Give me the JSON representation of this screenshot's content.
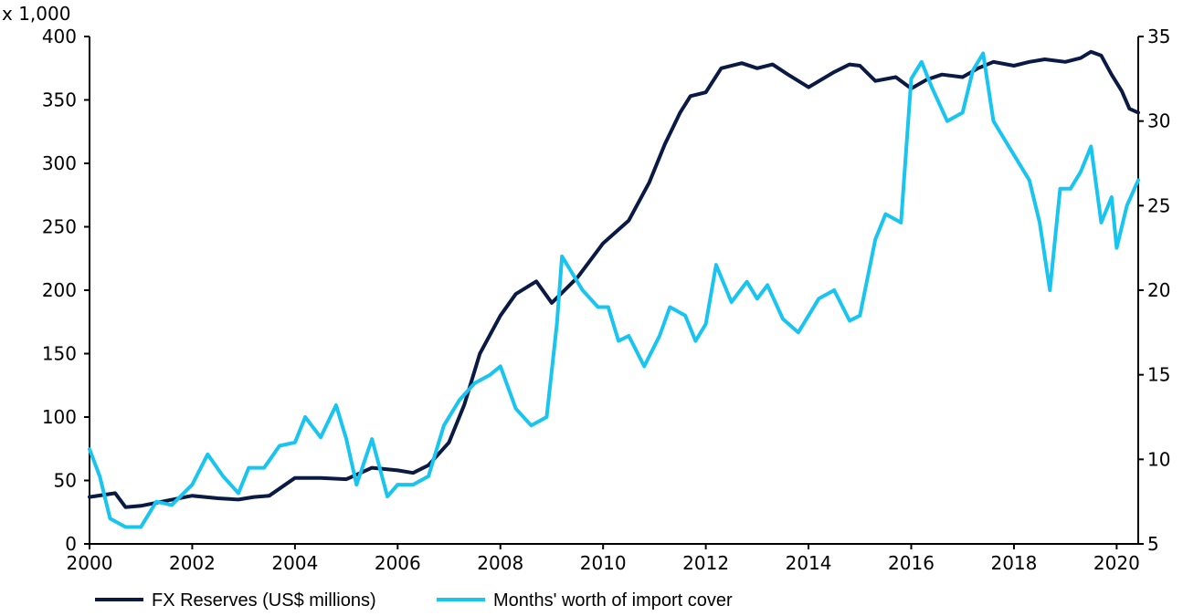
{
  "chart_data": {
    "type": "line",
    "y_unit_label": "x 1,000",
    "xlim": [
      2000,
      2020.42
    ],
    "ylim_left": [
      0,
      400
    ],
    "ylim_right": [
      5,
      35
    ],
    "x_ticks": [
      "2000",
      "2002",
      "2004",
      "2006",
      "2008",
      "2010",
      "2012",
      "2014",
      "2016",
      "2018",
      "2020"
    ],
    "left_ticks": [
      "0",
      "50",
      "100",
      "150",
      "200",
      "250",
      "300",
      "350",
      "400"
    ],
    "right_ticks": [
      "5",
      "10",
      "15",
      "20",
      "25",
      "30",
      "35"
    ],
    "grid": false,
    "legend_position": "bottom",
    "colors": {
      "reserves": "#0a1a44",
      "cover": "#18c4f0"
    },
    "series": [
      {
        "name": "FX Reserves (US$ millions)",
        "axis": "left",
        "points": [
          [
            2000,
            37
          ],
          [
            2000.5,
            40
          ],
          [
            2000.7,
            29
          ],
          [
            2001,
            30
          ],
          [
            2001.5,
            34
          ],
          [
            2002,
            38
          ],
          [
            2002.5,
            36
          ],
          [
            2002.9,
            35
          ],
          [
            2003.2,
            37
          ],
          [
            2003.5,
            38
          ],
          [
            2004,
            52
          ],
          [
            2004.5,
            52
          ],
          [
            2005,
            51
          ],
          [
            2005.5,
            60
          ],
          [
            2006,
            58
          ],
          [
            2006.3,
            56
          ],
          [
            2006.6,
            62
          ],
          [
            2007,
            80
          ],
          [
            2007.3,
            110
          ],
          [
            2007.6,
            150
          ],
          [
            2008,
            180
          ],
          [
            2008.3,
            197
          ],
          [
            2008.7,
            207
          ],
          [
            2009,
            190
          ],
          [
            2009.5,
            210
          ],
          [
            2010,
            237
          ],
          [
            2010.5,
            255
          ],
          [
            2010.9,
            285
          ],
          [
            2011.2,
            315
          ],
          [
            2011.5,
            340
          ],
          [
            2011.7,
            353
          ],
          [
            2012,
            356
          ],
          [
            2012.3,
            375
          ],
          [
            2012.7,
            379
          ],
          [
            2013,
            375
          ],
          [
            2013.3,
            378
          ],
          [
            2013.6,
            370
          ],
          [
            2014,
            360
          ],
          [
            2014.5,
            372
          ],
          [
            2014.8,
            378
          ],
          [
            2015,
            377
          ],
          [
            2015.3,
            365
          ],
          [
            2015.7,
            368
          ],
          [
            2016,
            359
          ],
          [
            2016.3,
            366
          ],
          [
            2016.6,
            370
          ],
          [
            2017,
            368
          ],
          [
            2017.3,
            375
          ],
          [
            2017.6,
            380
          ],
          [
            2018,
            377
          ],
          [
            2018.3,
            380
          ],
          [
            2018.6,
            382
          ],
          [
            2019,
            380
          ],
          [
            2019.3,
            383
          ],
          [
            2019.5,
            388
          ],
          [
            2019.7,
            385
          ],
          [
            2019.9,
            370
          ],
          [
            2020.1,
            357
          ],
          [
            2020.25,
            343
          ],
          [
            2020.42,
            340
          ]
        ]
      },
      {
        "name": "Months' worth of import cover",
        "axis": "right",
        "points": [
          [
            2000,
            10.6
          ],
          [
            2000.2,
            9
          ],
          [
            2000.4,
            6.5
          ],
          [
            2000.7,
            6
          ],
          [
            2001,
            6
          ],
          [
            2001.3,
            7.5
          ],
          [
            2001.6,
            7.3
          ],
          [
            2002,
            8.5
          ],
          [
            2002.3,
            10.3
          ],
          [
            2002.6,
            9
          ],
          [
            2002.9,
            8
          ],
          [
            2003.1,
            9.5
          ],
          [
            2003.4,
            9.5
          ],
          [
            2003.7,
            10.8
          ],
          [
            2004,
            11
          ],
          [
            2004.2,
            12.5
          ],
          [
            2004.5,
            11.3
          ],
          [
            2004.8,
            13.2
          ],
          [
            2005,
            11.2
          ],
          [
            2005.2,
            8.5
          ],
          [
            2005.5,
            11.2
          ],
          [
            2005.8,
            7.8
          ],
          [
            2006,
            8.5
          ],
          [
            2006.3,
            8.5
          ],
          [
            2006.6,
            9
          ],
          [
            2006.9,
            12
          ],
          [
            2007.2,
            13.5
          ],
          [
            2007.5,
            14.5
          ],
          [
            2007.8,
            15
          ],
          [
            2008,
            15.5
          ],
          [
            2008.3,
            13
          ],
          [
            2008.6,
            12
          ],
          [
            2008.9,
            12.5
          ],
          [
            2009.1,
            18
          ],
          [
            2009.2,
            22
          ],
          [
            2009.4,
            21
          ],
          [
            2009.6,
            20
          ],
          [
            2009.9,
            19
          ],
          [
            2010.1,
            19
          ],
          [
            2010.3,
            17
          ],
          [
            2010.5,
            17.3
          ],
          [
            2010.8,
            15.5
          ],
          [
            2011.1,
            17.3
          ],
          [
            2011.3,
            19
          ],
          [
            2011.6,
            18.5
          ],
          [
            2011.8,
            17
          ],
          [
            2012,
            18
          ],
          [
            2012.2,
            21.5
          ],
          [
            2012.5,
            19.3
          ],
          [
            2012.8,
            20.5
          ],
          [
            2013,
            19.5
          ],
          [
            2013.2,
            20.3
          ],
          [
            2013.5,
            18.3
          ],
          [
            2013.8,
            17.5
          ],
          [
            2014,
            18.5
          ],
          [
            2014.2,
            19.5
          ],
          [
            2014.5,
            20
          ],
          [
            2014.8,
            18.2
          ],
          [
            2015,
            18.5
          ],
          [
            2015.3,
            23
          ],
          [
            2015.5,
            24.5
          ],
          [
            2015.8,
            24
          ],
          [
            2016,
            32.5
          ],
          [
            2016.2,
            33.5
          ],
          [
            2016.4,
            32
          ],
          [
            2016.7,
            30
          ],
          [
            2017,
            30.5
          ],
          [
            2017.2,
            33
          ],
          [
            2017.4,
            34
          ],
          [
            2017.6,
            30
          ],
          [
            2017.9,
            28.5
          ],
          [
            2018,
            28
          ],
          [
            2018.3,
            26.5
          ],
          [
            2018.5,
            24
          ],
          [
            2018.7,
            20
          ],
          [
            2018.9,
            26
          ],
          [
            2019.1,
            26
          ],
          [
            2019.3,
            27
          ],
          [
            2019.5,
            28.5
          ],
          [
            2019.7,
            24
          ],
          [
            2019.9,
            25.5
          ],
          [
            2020,
            22.5
          ],
          [
            2020.2,
            25
          ],
          [
            2020.42,
            26.5
          ]
        ]
      }
    ]
  }
}
